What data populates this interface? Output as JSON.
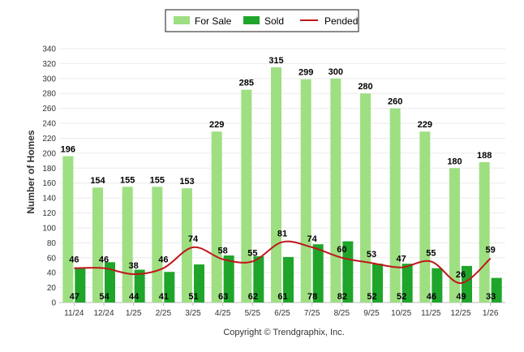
{
  "chart_data": {
    "type": "bar",
    "title": "",
    "xlabel": "",
    "ylabel": "Number of Homes",
    "ylim": [
      0,
      340
    ],
    "yticks": [
      0,
      20,
      40,
      60,
      80,
      100,
      120,
      140,
      160,
      180,
      200,
      220,
      240,
      260,
      280,
      300,
      320,
      340
    ],
    "grid": true,
    "legend_position": "top-center",
    "categories": [
      "11/24",
      "12/24",
      "1/25",
      "2/25",
      "3/25",
      "4/25",
      "5/25",
      "6/25",
      "7/25",
      "8/25",
      "9/25",
      "10/25",
      "11/25",
      "12/25",
      "1/26"
    ],
    "series": [
      {
        "name": "For Sale",
        "kind": "bar",
        "color": "#9edf82",
        "values": [
          196,
          154,
          155,
          155,
          153,
          229,
          285,
          315,
          299,
          300,
          280,
          260,
          229,
          180,
          188
        ]
      },
      {
        "name": "Sold",
        "kind": "bar",
        "color": "#1fa52a",
        "values": [
          47,
          54,
          44,
          41,
          51,
          63,
          62,
          61,
          78,
          82,
          52,
          52,
          46,
          49,
          33
        ]
      },
      {
        "name": "Pended",
        "kind": "line",
        "color": "#c0161b",
        "values": [
          46,
          46,
          38,
          46,
          74,
          58,
          55,
          81,
          74,
          60,
          53,
          47,
          55,
          26,
          59
        ]
      }
    ],
    "credit": "Copyright © Trendgraphix, Inc."
  }
}
